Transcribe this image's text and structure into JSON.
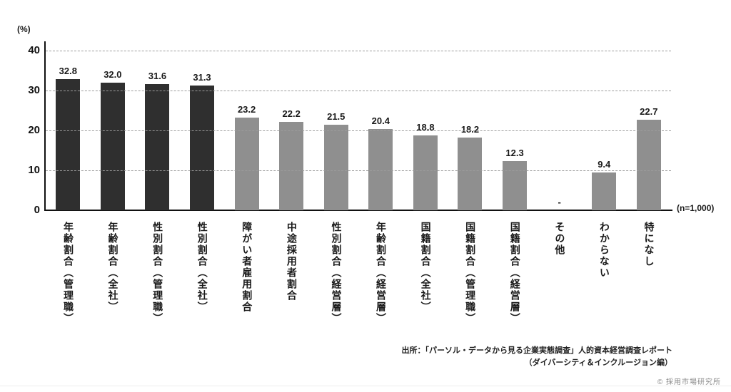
{
  "chart_data": {
    "type": "bar",
    "title": "",
    "unit": "(%)",
    "n_label": "(n=1,000)",
    "ylim": [
      0,
      40
    ],
    "yticks": [
      0,
      10,
      20,
      30,
      40
    ],
    "grid": "dashed-horizontal",
    "legend": "none",
    "categories": [
      "年齢割合（管理職）",
      "年齢割合（全社）",
      "性別割合（管理職）",
      "性別割合（全社）",
      "障がい者雇用割合",
      "中途採用者割合",
      "性別割合（経営層）",
      "年齢割合（経営層）",
      "国籍割合（全社）",
      "国籍割合（管理職）",
      "国籍割合（経営層）",
      "その他",
      "わからない",
      "特になし"
    ],
    "values": [
      32.8,
      32.0,
      31.6,
      31.3,
      23.2,
      22.2,
      21.5,
      20.4,
      18.8,
      18.2,
      12.3,
      null,
      9.4,
      22.7
    ],
    "value_labels": [
      "32.8",
      "32.0",
      "31.6",
      "31.3",
      "23.2",
      "22.2",
      "21.5",
      "20.4",
      "18.8",
      "18.2",
      "12.3",
      "-",
      "9.4",
      "22.7"
    ],
    "bar_tones": [
      "dark",
      "dark",
      "dark",
      "dark",
      "gray",
      "gray",
      "gray",
      "gray",
      "gray",
      "gray",
      "gray",
      "gray",
      "gray",
      "gray"
    ],
    "colors": {
      "dark": "#2f2f2f",
      "gray": "#8f8f8f"
    }
  },
  "footer": {
    "source_line1": "出所：「パーソル・データから見る企業実態調査」人的資本経営調査レポート",
    "source_line2": "（ダイバーシティ＆インクルージョン編）",
    "copyright": "© 採用市場研究所"
  }
}
